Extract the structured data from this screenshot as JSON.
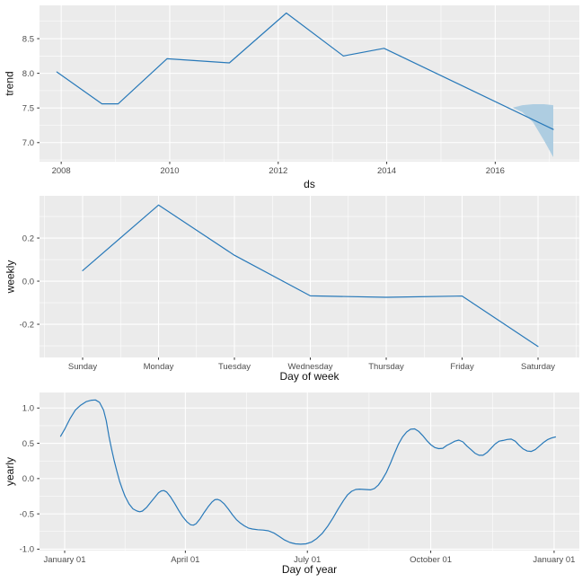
{
  "figure": {
    "background": "#FFFFFF",
    "panel_background": "#EBEBEB",
    "grid_color": "#FFFFFF",
    "line_color": "#2879B9",
    "ribbon_fill": "#AECDE1",
    "tick_mark_color": "#333333",
    "tick_label_color": "#4D4D4D",
    "axis_title_color": "#111111"
  },
  "chart_data": [
    {
      "type": "line",
      "name": "trend",
      "xlabel": "ds",
      "ylabel": "trend",
      "xlim": [
        2007.6,
        2017.55
      ],
      "ylim": [
        6.725,
        8.98
      ],
      "grid": true,
      "x_ticks": [
        {
          "v": 2008,
          "label": "2008"
        },
        {
          "v": 2010,
          "label": "2010"
        },
        {
          "v": 2012,
          "label": "2012"
        },
        {
          "v": 2014,
          "label": "2014"
        },
        {
          "v": 2016,
          "label": "2016"
        }
      ],
      "y_ticks": [
        {
          "v": 7.0,
          "label": "7.0"
        },
        {
          "v": 7.5,
          "label": "7.5"
        },
        {
          "v": 8.0,
          "label": "8.0"
        },
        {
          "v": 8.5,
          "label": "8.5"
        }
      ],
      "x_minor": [
        2009,
        2011,
        2013,
        2015,
        2017
      ],
      "y_minor": [
        6.75,
        7.25,
        7.75,
        8.25,
        8.75
      ],
      "series": [
        {
          "name": "trend",
          "points": [
            [
              2007.92,
              8.02
            ],
            [
              2008.75,
              7.56
            ],
            [
              2009.05,
              7.56
            ],
            [
              2009.95,
              8.21
            ],
            [
              2011.1,
              8.15
            ],
            [
              2012.15,
              8.87
            ],
            [
              2013.2,
              8.25
            ],
            [
              2013.95,
              8.36
            ],
            [
              2017.07,
              7.19
            ]
          ]
        }
      ],
      "ribbon": {
        "name": "trend-uncertainty-interval",
        "upper": [
          [
            2016.32,
            7.505
          ],
          [
            2016.5,
            7.54
          ],
          [
            2016.7,
            7.555
          ],
          [
            2016.9,
            7.555
          ],
          [
            2017.07,
            7.54
          ]
        ],
        "lower": [
          [
            2016.32,
            7.505
          ],
          [
            2016.5,
            7.44
          ],
          [
            2016.7,
            7.29
          ],
          [
            2016.9,
            7.03
          ],
          [
            2017.07,
            6.79
          ]
        ]
      }
    },
    {
      "type": "line",
      "name": "weekly",
      "xlabel": "Day of week",
      "ylabel": "weekly",
      "xlim": [
        -0.568,
        6.544
      ],
      "ylim": [
        -0.354,
        0.396
      ],
      "grid": true,
      "x_ticks": [
        {
          "v": 0,
          "label": "Sunday"
        },
        {
          "v": 1,
          "label": "Monday"
        },
        {
          "v": 2,
          "label": "Tuesday"
        },
        {
          "v": 3,
          "label": "Wednesday"
        },
        {
          "v": 4,
          "label": "Thursday"
        },
        {
          "v": 5,
          "label": "Friday"
        },
        {
          "v": 6,
          "label": "Saturday"
        }
      ],
      "y_ticks": [
        {
          "v": -0.2,
          "label": "-0.2"
        },
        {
          "v": 0.0,
          "label": "0.0"
        },
        {
          "v": 0.2,
          "label": "0.2"
        }
      ],
      "x_minor": [
        -0.5,
        0.5,
        1.5,
        2.5,
        3.5,
        4.5,
        5.5,
        6.5
      ],
      "y_minor": [
        -0.3,
        -0.1,
        0.1,
        0.3
      ],
      "series": [
        {
          "name": "weekly",
          "points": [
            [
              0,
              0.049
            ],
            [
              1,
              0.353
            ],
            [
              2,
              0.12
            ],
            [
              3,
              -0.068
            ],
            [
              4,
              -0.075
            ],
            [
              5,
              -0.069
            ],
            [
              6,
              -0.303
            ]
          ]
        }
      ]
    },
    {
      "type": "line",
      "name": "yearly",
      "xlabel": "Day of year",
      "ylabel": "yearly",
      "xlim": [
        -18.75,
        383.8
      ],
      "ylim": [
        -1.02,
        1.22
      ],
      "grid": true,
      "x_ticks": [
        {
          "v": 0,
          "label": "January 01"
        },
        {
          "v": 90,
          "label": "April 01"
        },
        {
          "v": 181,
          "label": "July 01"
        },
        {
          "v": 273,
          "label": "October 01"
        },
        {
          "v": 365,
          "label": "January 01"
        }
      ],
      "y_ticks": [
        {
          "v": -1.0,
          "label": "-1.0"
        },
        {
          "v": -0.5,
          "label": "-0.5"
        },
        {
          "v": 0.0,
          "label": "0.0"
        },
        {
          "v": 0.5,
          "label": "0.5"
        },
        {
          "v": 1.0,
          "label": "1.0"
        }
      ],
      "x_minor": [
        45,
        135.5,
        227,
        319
      ],
      "y_minor": [
        -0.75,
        -0.25,
        0.25,
        0.75
      ],
      "series": [
        {
          "name": "yearly",
          "points": [
            [
              -3,
              0.6
            ],
            [
              0,
              0.7
            ],
            [
              4,
              0.85
            ],
            [
              8,
              0.97
            ],
            [
              12,
              1.04
            ],
            [
              16,
              1.09
            ],
            [
              20,
              1.11
            ],
            [
              23,
              1.115
            ],
            [
              26,
              1.08
            ],
            [
              29,
              0.97
            ],
            [
              31,
              0.82
            ],
            [
              33,
              0.6
            ],
            [
              35,
              0.42
            ],
            [
              37,
              0.25
            ],
            [
              39,
              0.1
            ],
            [
              41,
              -0.04
            ],
            [
              43,
              -0.15
            ],
            [
              45,
              -0.25
            ],
            [
              48,
              -0.36
            ],
            [
              51,
              -0.43
            ],
            [
              54,
              -0.46
            ],
            [
              56,
              -0.47
            ],
            [
              58,
              -0.46
            ],
            [
              61,
              -0.41
            ],
            [
              64,
              -0.34
            ],
            [
              67,
              -0.27
            ],
            [
              70,
              -0.2
            ],
            [
              72,
              -0.175
            ],
            [
              74,
              -0.17
            ],
            [
              76,
              -0.19
            ],
            [
              79,
              -0.26
            ],
            [
              82,
              -0.35
            ],
            [
              85,
              -0.45
            ],
            [
              88,
              -0.54
            ],
            [
              91,
              -0.61
            ],
            [
              94,
              -0.655
            ],
            [
              96,
              -0.66
            ],
            [
              98,
              -0.64
            ],
            [
              101,
              -0.57
            ],
            [
              104,
              -0.48
            ],
            [
              107,
              -0.4
            ],
            [
              110,
              -0.33
            ],
            [
              112,
              -0.3
            ],
            [
              114,
              -0.295
            ],
            [
              116,
              -0.31
            ],
            [
              119,
              -0.36
            ],
            [
              122,
              -0.43
            ],
            [
              125,
              -0.51
            ],
            [
              128,
              -0.58
            ],
            [
              131,
              -0.63
            ],
            [
              134,
              -0.67
            ],
            [
              137,
              -0.7
            ],
            [
              140,
              -0.715
            ],
            [
              144,
              -0.725
            ],
            [
              148,
              -0.73
            ],
            [
              152,
              -0.74
            ],
            [
              156,
              -0.77
            ],
            [
              160,
              -0.82
            ],
            [
              164,
              -0.87
            ],
            [
              168,
              -0.905
            ],
            [
              172,
              -0.925
            ],
            [
              176,
              -0.93
            ],
            [
              180,
              -0.925
            ],
            [
              184,
              -0.9
            ],
            [
              188,
              -0.85
            ],
            [
              192,
              -0.78
            ],
            [
              196,
              -0.68
            ],
            [
              200,
              -0.56
            ],
            [
              204,
              -0.43
            ],
            [
              208,
              -0.31
            ],
            [
              211,
              -0.23
            ],
            [
              214,
              -0.18
            ],
            [
              217,
              -0.155
            ],
            [
              220,
              -0.15
            ],
            [
              224,
              -0.155
            ],
            [
              228,
              -0.16
            ],
            [
              231,
              -0.14
            ],
            [
              234,
              -0.09
            ],
            [
              237,
              -0.01
            ],
            [
              240,
              0.09
            ],
            [
              243,
              0.22
            ],
            [
              246,
              0.36
            ],
            [
              249,
              0.49
            ],
            [
              252,
              0.59
            ],
            [
              255,
              0.66
            ],
            [
              258,
              0.7
            ],
            [
              261,
              0.705
            ],
            [
              264,
              0.67
            ],
            [
              267,
              0.61
            ],
            [
              270,
              0.54
            ],
            [
              273,
              0.48
            ],
            [
              276,
              0.44
            ],
            [
              279,
              0.425
            ],
            [
              282,
              0.43
            ],
            [
              285,
              0.47
            ],
            [
              288,
              0.5
            ],
            [
              291,
              0.53
            ],
            [
              294,
              0.545
            ],
            [
              297,
              0.52
            ],
            [
              300,
              0.46
            ],
            [
              303,
              0.41
            ],
            [
              306,
              0.36
            ],
            [
              309,
              0.33
            ],
            [
              312,
              0.33
            ],
            [
              315,
              0.37
            ],
            [
              318,
              0.43
            ],
            [
              321,
              0.49
            ],
            [
              324,
              0.53
            ],
            [
              327,
              0.54
            ],
            [
              330,
              0.555
            ],
            [
              333,
              0.56
            ],
            [
              336,
              0.53
            ],
            [
              339,
              0.47
            ],
            [
              342,
              0.42
            ],
            [
              345,
              0.39
            ],
            [
              348,
              0.385
            ],
            [
              351,
              0.41
            ],
            [
              354,
              0.46
            ],
            [
              357,
              0.51
            ],
            [
              360,
              0.55
            ],
            [
              363,
              0.575
            ],
            [
              366,
              0.59
            ]
          ]
        }
      ]
    }
  ]
}
